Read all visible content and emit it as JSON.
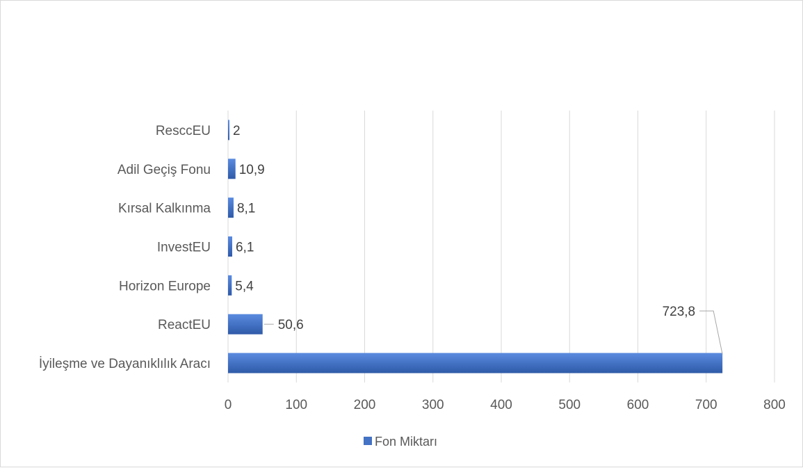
{
  "chart_data": {
    "type": "bar",
    "orientation": "horizontal",
    "categories": [
      "ResccEU",
      "Adil Geçiş Fonu",
      "Kırsal Kalkınma",
      "InvestEU",
      "Horizon Europe",
      "ReactEU",
      "İyileşme ve Dayanıklılık Aracı"
    ],
    "series": [
      {
        "name": "Fon Miktarı",
        "values": [
          2,
          10.9,
          8.1,
          6.1,
          5.4,
          50.6,
          723.8
        ],
        "labels": [
          "2",
          "10,9",
          "8,1",
          "6,1",
          "5,4",
          "50,6",
          "723,8"
        ],
        "color": "#4472c4"
      }
    ],
    "title": "",
    "xlabel": "",
    "ylabel": "",
    "xlim": [
      0,
      800
    ],
    "xticks": [
      "0",
      "100",
      "200",
      "300",
      "400",
      "500",
      "600",
      "700",
      "800"
    ],
    "grid": true,
    "legend_position": "bottom"
  }
}
